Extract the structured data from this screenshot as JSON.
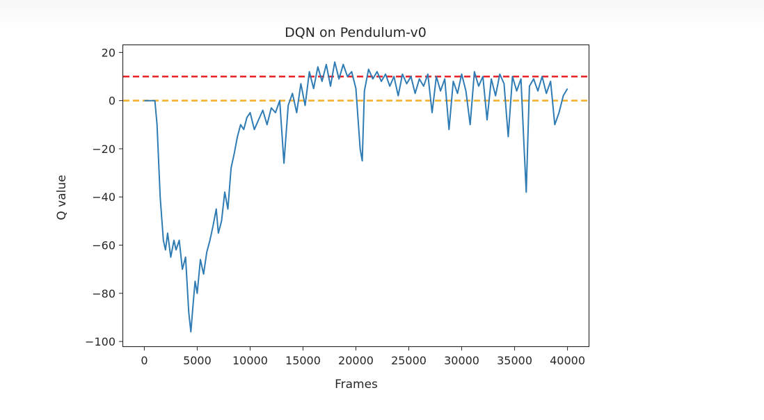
{
  "chart_data": {
    "type": "line",
    "title": "DQN on Pendulum-v0",
    "xlabel": "Frames",
    "ylabel": "Q value",
    "xlim": [
      -2000,
      42000
    ],
    "ylim": [
      -102,
      23
    ],
    "xticks": [
      0,
      5000,
      10000,
      15000,
      20000,
      25000,
      30000,
      35000,
      40000
    ],
    "yticks": [
      20,
      0,
      -20,
      -40,
      -60,
      -80,
      -100
    ],
    "ytick_labels": [
      "20",
      "0",
      "−20",
      "−40",
      "−60",
      "−80",
      "−100"
    ],
    "grid": false,
    "hlines": [
      {
        "y": 10,
        "color": "#e8262a",
        "style": "dashed"
      },
      {
        "y": 0,
        "color": "#f7b132",
        "style": "dashed"
      }
    ],
    "series": [
      {
        "color": "#2f7bb4",
        "x": [
          0,
          500,
          1000,
          1200,
          1500,
          1800,
          2000,
          2200,
          2500,
          2800,
          3000,
          3300,
          3600,
          3900,
          4200,
          4400,
          4600,
          4800,
          5000,
          5300,
          5600,
          5900,
          6200,
          6500,
          6800,
          7000,
          7300,
          7600,
          7900,
          8200,
          8500,
          8800,
          9100,
          9400,
          9700,
          10000,
          10400,
          10800,
          11200,
          11600,
          12000,
          12400,
          12800,
          13200,
          13600,
          14000,
          14400,
          14800,
          15200,
          15600,
          16000,
          16400,
          16800,
          17200,
          17600,
          18000,
          18400,
          18800,
          19200,
          19600,
          20000,
          20400,
          20600,
          20800,
          21200,
          21600,
          22000,
          22400,
          22800,
          23200,
          23600,
          24000,
          24400,
          24800,
          25200,
          25600,
          26000,
          26400,
          26800,
          27200,
          27600,
          28000,
          28400,
          28800,
          29200,
          29600,
          30000,
          30400,
          30800,
          31200,
          31600,
          32000,
          32400,
          32800,
          33200,
          33600,
          34000,
          34400,
          34800,
          35200,
          35600,
          35900,
          36100,
          36400,
          36800,
          37200,
          37600,
          38000,
          38400,
          38800,
          39200,
          39600,
          40000
        ],
        "y": [
          0,
          0,
          0,
          -10,
          -40,
          -58,
          -62,
          -55,
          -65,
          -58,
          -62,
          -58,
          -70,
          -65,
          -88,
          -96,
          -85,
          -75,
          -80,
          -66,
          -72,
          -63,
          -58,
          -52,
          -45,
          -55,
          -50,
          -38,
          -45,
          -28,
          -22,
          -15,
          -10,
          -12,
          -7,
          -5,
          -12,
          -8,
          -4,
          -10,
          -3,
          -5,
          0,
          -26,
          -2,
          3,
          -5,
          7,
          -2,
          12,
          5,
          14,
          8,
          15,
          6,
          16,
          9,
          15,
          10,
          12,
          5,
          -20,
          -25,
          4,
          13,
          9,
          12,
          8,
          11,
          6,
          10,
          2,
          11,
          7,
          10,
          3,
          9,
          6,
          11,
          -5,
          10,
          4,
          9,
          -12,
          8,
          3,
          11,
          4,
          -10,
          12,
          6,
          10,
          -8,
          9,
          2,
          11,
          7,
          -15,
          10,
          4,
          9,
          -20,
          -38,
          6,
          9,
          4,
          10,
          3,
          8,
          -10,
          -5,
          2,
          5
        ]
      }
    ]
  }
}
